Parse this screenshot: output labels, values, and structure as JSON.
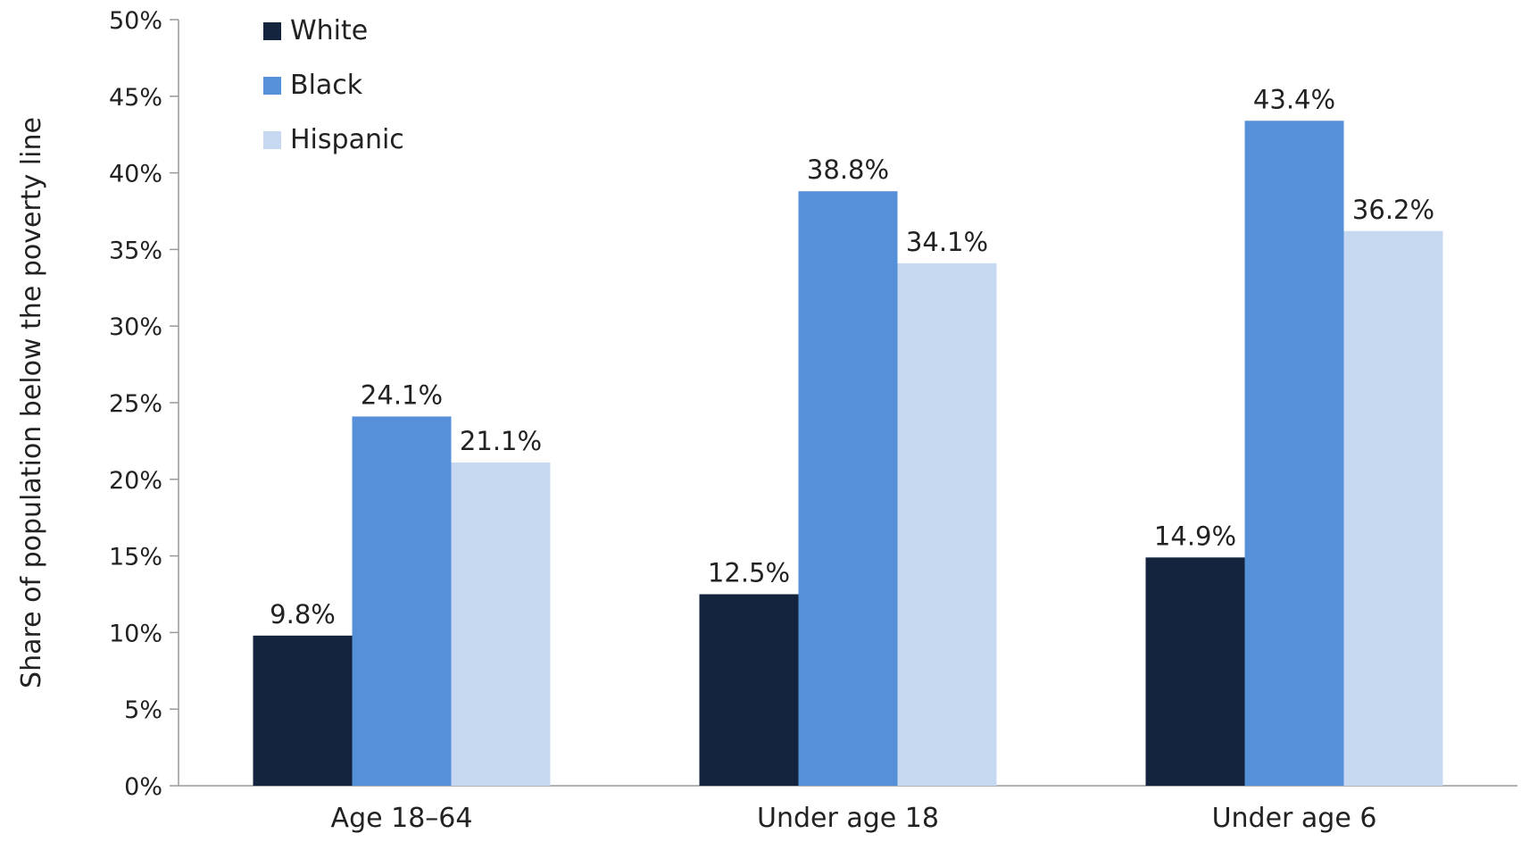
{
  "chart_data": {
    "type": "bar",
    "title": "",
    "xlabel": "",
    "ylabel": "Share of population below the poverty line",
    "ylim": [
      0,
      50
    ],
    "yticks": [
      0,
      5,
      10,
      15,
      20,
      25,
      30,
      35,
      40,
      45,
      50
    ],
    "ytick_format": "{v}%",
    "grid": false,
    "legend_position": "top-left",
    "categories": [
      "Age 18–64",
      "Under age 18",
      "Under age 6"
    ],
    "series": [
      {
        "name": "White",
        "color": "#14243f",
        "values": [
          9.8,
          12.5,
          14.9
        ],
        "labels": [
          "9.8%",
          "12.5%",
          "14.9%"
        ]
      },
      {
        "name": "Black",
        "color": "#5690d8",
        "values": [
          24.1,
          38.8,
          43.4
        ],
        "labels": [
          "24.1%",
          "38.8%",
          "43.4%"
        ]
      },
      {
        "name": "Hispanic",
        "color": "#c7d9f0",
        "values": [
          21.1,
          34.1,
          36.2
        ],
        "labels": [
          "21.1%",
          "34.1%",
          "36.2%"
        ]
      }
    ]
  }
}
